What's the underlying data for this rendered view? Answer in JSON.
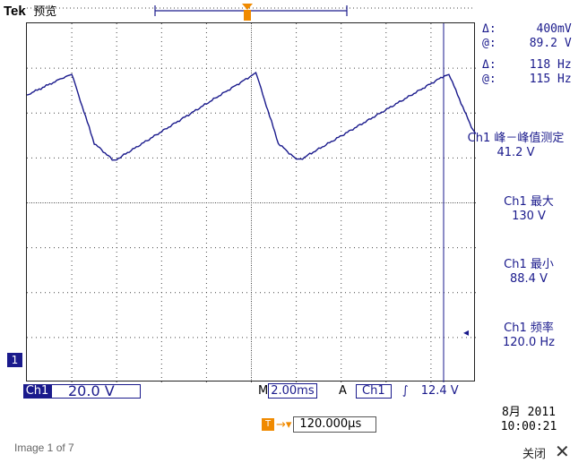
{
  "header": {
    "brand": "Tek",
    "mode": "预览"
  },
  "cursor_readouts": {
    "delta_v": "400mV",
    "at_v": "89.2 V",
    "delta_f": "118 Hz",
    "at_f": "115 Hz",
    "delta_symbol": "Δ:",
    "at_symbol": "@:"
  },
  "measurements": [
    {
      "label": "Ch1 峰－峰值测定",
      "value": "41.2 V"
    },
    {
      "label": "Ch1 最大",
      "value": "130 V"
    },
    {
      "label": "Ch1 最小",
      "value": "88.4 V"
    },
    {
      "label": "Ch1 频率",
      "value": "120.0 Hz"
    }
  ],
  "bottom": {
    "channel_tag": "Ch1",
    "volts_div": "20.0 V",
    "timebase_prefix": "M",
    "timebase": "2.00ms",
    "trigger_prefix": "A",
    "trigger_channel": "Ch1",
    "trigger_slope_symbol": "∫",
    "trigger_level": "12.4 V",
    "horizontal_position": "120.000µs",
    "date": "8月 2011",
    "time": "10:00:21"
  },
  "markers": {
    "ground": "1",
    "trigger": "T"
  },
  "footer": {
    "image_counter": "Image 1 of 7",
    "close_label": "关闭",
    "close_symbol": "✕"
  },
  "colors": {
    "trace": "#1a1a8c",
    "trigger": "#f08a00",
    "grid": "#444444"
  },
  "waveform": {
    "description_units": "divisions",
    "points": [
      [
        0.0,
        2.4
      ],
      [
        0.9,
        3.0
      ],
      [
        1.0,
        3.05
      ],
      [
        1.5,
        0.9
      ],
      [
        1.9,
        0.4
      ],
      [
        2.0,
        0.4
      ],
      [
        5.0,
        3.0
      ],
      [
        5.1,
        3.1
      ],
      [
        5.6,
        0.9
      ],
      [
        6.0,
        0.4
      ],
      [
        6.1,
        0.4
      ],
      [
        9.3,
        3.0
      ],
      [
        9.4,
        3.05
      ],
      [
        9.9,
        1.4
      ],
      [
        10.0,
        1.2
      ]
    ]
  }
}
